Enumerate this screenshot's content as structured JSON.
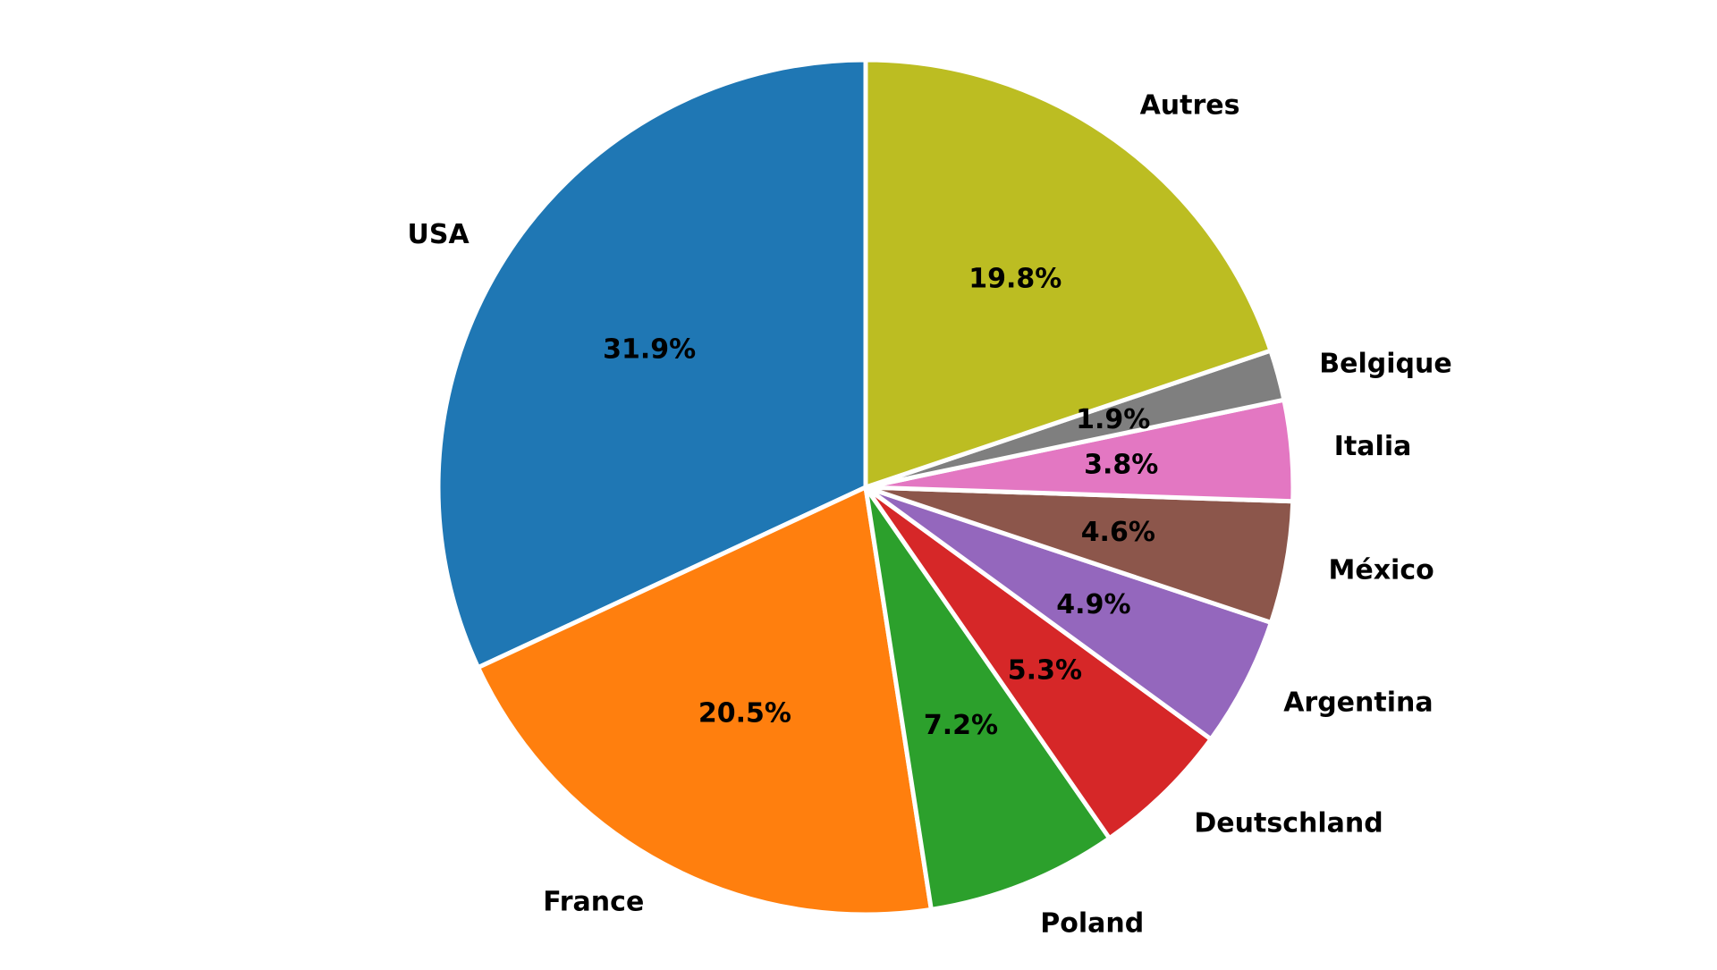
{
  "chart_data": {
    "type": "pie",
    "title": "",
    "start_angle_deg": 90,
    "direction": "counterclockwise",
    "legend": "none",
    "edge_color": "#ffffff",
    "slices": [
      {
        "label": "USA",
        "value": 31.9,
        "display": "31.9%",
        "color": "#1f77b4"
      },
      {
        "label": "France",
        "value": 20.5,
        "display": "20.5%",
        "color": "#ff7f0e"
      },
      {
        "label": "Poland",
        "value": 7.2,
        "display": "7.2%",
        "color": "#2ca02c"
      },
      {
        "label": "Deutschland",
        "value": 5.3,
        "display": "5.3%",
        "color": "#d62728"
      },
      {
        "label": "Argentina",
        "value": 4.9,
        "display": "4.9%",
        "color": "#9467bd"
      },
      {
        "label": "México",
        "value": 4.6,
        "display": "4.6%",
        "color": "#8c564b"
      },
      {
        "label": "Italia",
        "value": 3.8,
        "display": "3.8%",
        "color": "#e377c2"
      },
      {
        "label": "Belgique",
        "value": 1.9,
        "display": "1.9%",
        "color": "#7f7f7f"
      },
      {
        "label": "Autres",
        "value": 19.8,
        "display": "19.8%",
        "color": "#bcbd22"
      }
    ]
  }
}
